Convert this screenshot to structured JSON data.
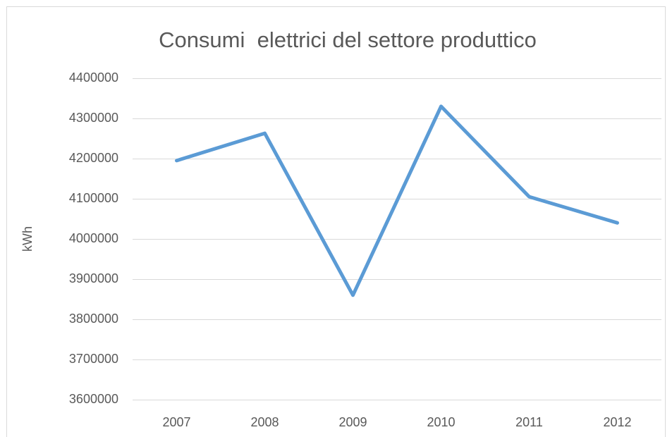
{
  "chart_data": {
    "type": "line",
    "title": "Consumi  elettrici del settore produttico",
    "y_label": "kWh",
    "categories": [
      "2007",
      "2008",
      "2009",
      "2010",
      "2011",
      "2012"
    ],
    "values": [
      4195000,
      4263000,
      3860000,
      4330000,
      4105000,
      4040000
    ],
    "color": "#5b9bd5",
    "ylim": [
      3600000,
      4400000
    ],
    "yticks": [
      3600000,
      3700000,
      3800000,
      3900000,
      4000000,
      4100000,
      4200000,
      4300000,
      4400000
    ],
    "grid": true
  }
}
